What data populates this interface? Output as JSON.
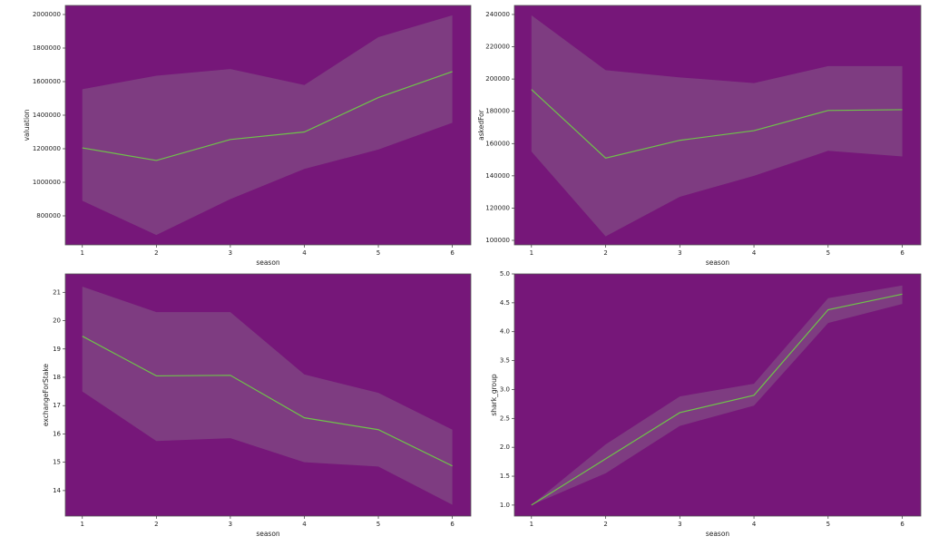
{
  "chart_data": [
    {
      "type": "line",
      "x": [
        1,
        2,
        3,
        4,
        5,
        6
      ],
      "values": [
        1205000,
        1130000,
        1255000,
        1300000,
        1505000,
        1660000
      ],
      "lower": [
        890000,
        686000,
        900000,
        1080000,
        1195000,
        1355000
      ],
      "upper": [
        1555000,
        1635000,
        1675000,
        1580000,
        1865000,
        1995000
      ],
      "xlabel": "season",
      "ylabel": "valuation",
      "xlim": [
        0.77,
        6.25
      ],
      "xticks": [
        1,
        2,
        3,
        4,
        5,
        6
      ],
      "ylim": [
        627000,
        2054000
      ],
      "yticks": [
        800000,
        1000000,
        1200000,
        1400000,
        1600000,
        1800000,
        2000000
      ],
      "color": "#6fc24a",
      "band_color": "#8a6a8c",
      "background": "#761779"
    },
    {
      "type": "line",
      "x": [
        1,
        2,
        3,
        4,
        5,
        6
      ],
      "values": [
        193500,
        151000,
        162000,
        168000,
        180500,
        181000
      ],
      "lower": [
        155000,
        102500,
        127000,
        140000,
        155500,
        152000
      ],
      "upper": [
        239500,
        205500,
        201000,
        197500,
        208000,
        208000
      ],
      "xlabel": "season",
      "ylabel": "askedFor",
      "xlim": [
        0.77,
        6.25
      ],
      "xticks": [
        1,
        2,
        3,
        4,
        5,
        6
      ],
      "ylim": [
        97200,
        245600
      ],
      "yticks": [
        100000,
        120000,
        140000,
        160000,
        180000,
        200000,
        220000,
        240000
      ],
      "color": "#6fc24a",
      "band_color": "#8a6a8c",
      "background": "#761779"
    },
    {
      "type": "line",
      "x": [
        1,
        2,
        3,
        4,
        5,
        6
      ],
      "values": [
        19.45,
        18.05,
        18.07,
        16.57,
        16.15,
        14.87
      ],
      "lower": [
        17.5,
        15.75,
        15.85,
        15.0,
        14.85,
        13.5
      ],
      "upper": [
        21.2,
        20.3,
        20.3,
        18.1,
        17.45,
        16.15
      ],
      "xlabel": "season",
      "ylabel": "exchangeForStake",
      "xlim": [
        0.77,
        6.25
      ],
      "xticks": [
        1,
        2,
        3,
        4,
        5,
        6
      ],
      "ylim": [
        13.1,
        21.65
      ],
      "yticks": [
        14,
        15,
        16,
        17,
        18,
        19,
        20,
        21
      ],
      "color": "#6fc24a",
      "band_color": "#8a6a8c",
      "background": "#761779"
    },
    {
      "type": "line",
      "x": [
        1,
        2,
        3,
        4,
        5,
        6
      ],
      "values": [
        1.0,
        1.8,
        2.6,
        2.9,
        4.38,
        4.65
      ],
      "lower": [
        1.0,
        1.55,
        2.37,
        2.72,
        4.15,
        4.48
      ],
      "upper": [
        1.0,
        2.05,
        2.88,
        3.1,
        4.58,
        4.8
      ],
      "xlabel": "season",
      "ylabel": "shark_group",
      "xlim": [
        0.77,
        6.25
      ],
      "xticks": [
        1,
        2,
        3,
        4,
        5,
        6
      ],
      "ylim": [
        0.81,
        5.0
      ],
      "yticks": [
        {
          "value": 1,
          "label": "1.0"
        },
        {
          "value": 1.5,
          "label": "1.5"
        },
        {
          "value": 2,
          "label": "2.0"
        },
        {
          "value": 2.5,
          "label": "2.5"
        },
        {
          "value": 3,
          "label": "3.0"
        },
        {
          "value": 3.5,
          "label": "3.5"
        },
        {
          "value": 4,
          "label": "4.0"
        },
        {
          "value": 4.5,
          "label": "4.5"
        },
        {
          "value": 5,
          "label": "5.0"
        }
      ],
      "color": "#6fc24a",
      "band_color": "#8a6a8c",
      "background": "#761779"
    }
  ]
}
